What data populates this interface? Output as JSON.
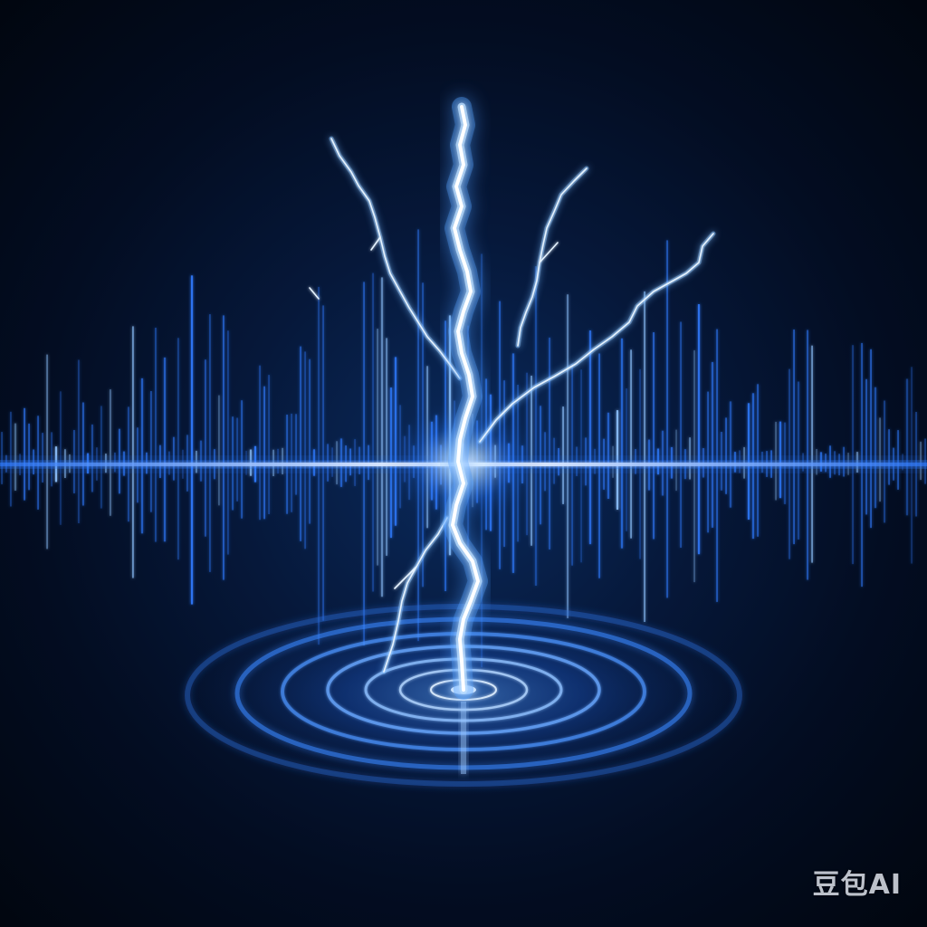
{
  "image": {
    "description_colors": {
      "background_deep": "#01060f",
      "background_glow": "#0a2a5c",
      "waveform": "#2f7bff",
      "waveform_core": "#d8ecff",
      "lightning": "#ffffff",
      "lightning_glow": "#6fb6ff",
      "ripple": "#3a86ff"
    },
    "elements": [
      "audio-waveform",
      "lightning-bolt",
      "water-ripples"
    ]
  },
  "watermark": {
    "text": "豆包AI"
  }
}
